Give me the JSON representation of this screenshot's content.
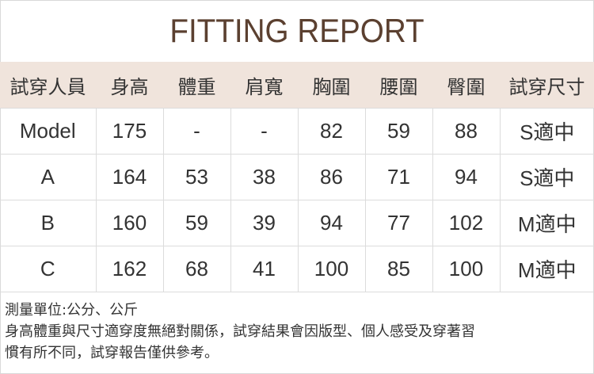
{
  "title": "FITTING REPORT",
  "table": {
    "headers": [
      "試穿人員",
      "身高",
      "體重",
      "肩寬",
      "胸圍",
      "腰圍",
      "臀圍",
      "試穿尺寸"
    ],
    "rows": [
      [
        "Model",
        "175",
        "-",
        "-",
        "82",
        "59",
        "88",
        "S適中"
      ],
      [
        "A",
        "164",
        "53",
        "38",
        "86",
        "71",
        "94",
        "S適中"
      ],
      [
        "B",
        "160",
        "59",
        "39",
        "94",
        "77",
        "102",
        "M適中"
      ],
      [
        "C",
        "162",
        "68",
        "41",
        "100",
        "85",
        "100",
        "M適中"
      ]
    ]
  },
  "notes": [
    "測量單位:公分、公斤",
    "身高體重與尺寸適穿度無絕對關係，試穿結果會因版型、個人感受及穿著習",
    "慣有所不同，試穿報告僅供參考。"
  ],
  "colors": {
    "header_bg": "#f0e4dc",
    "title": "#5b4030"
  }
}
